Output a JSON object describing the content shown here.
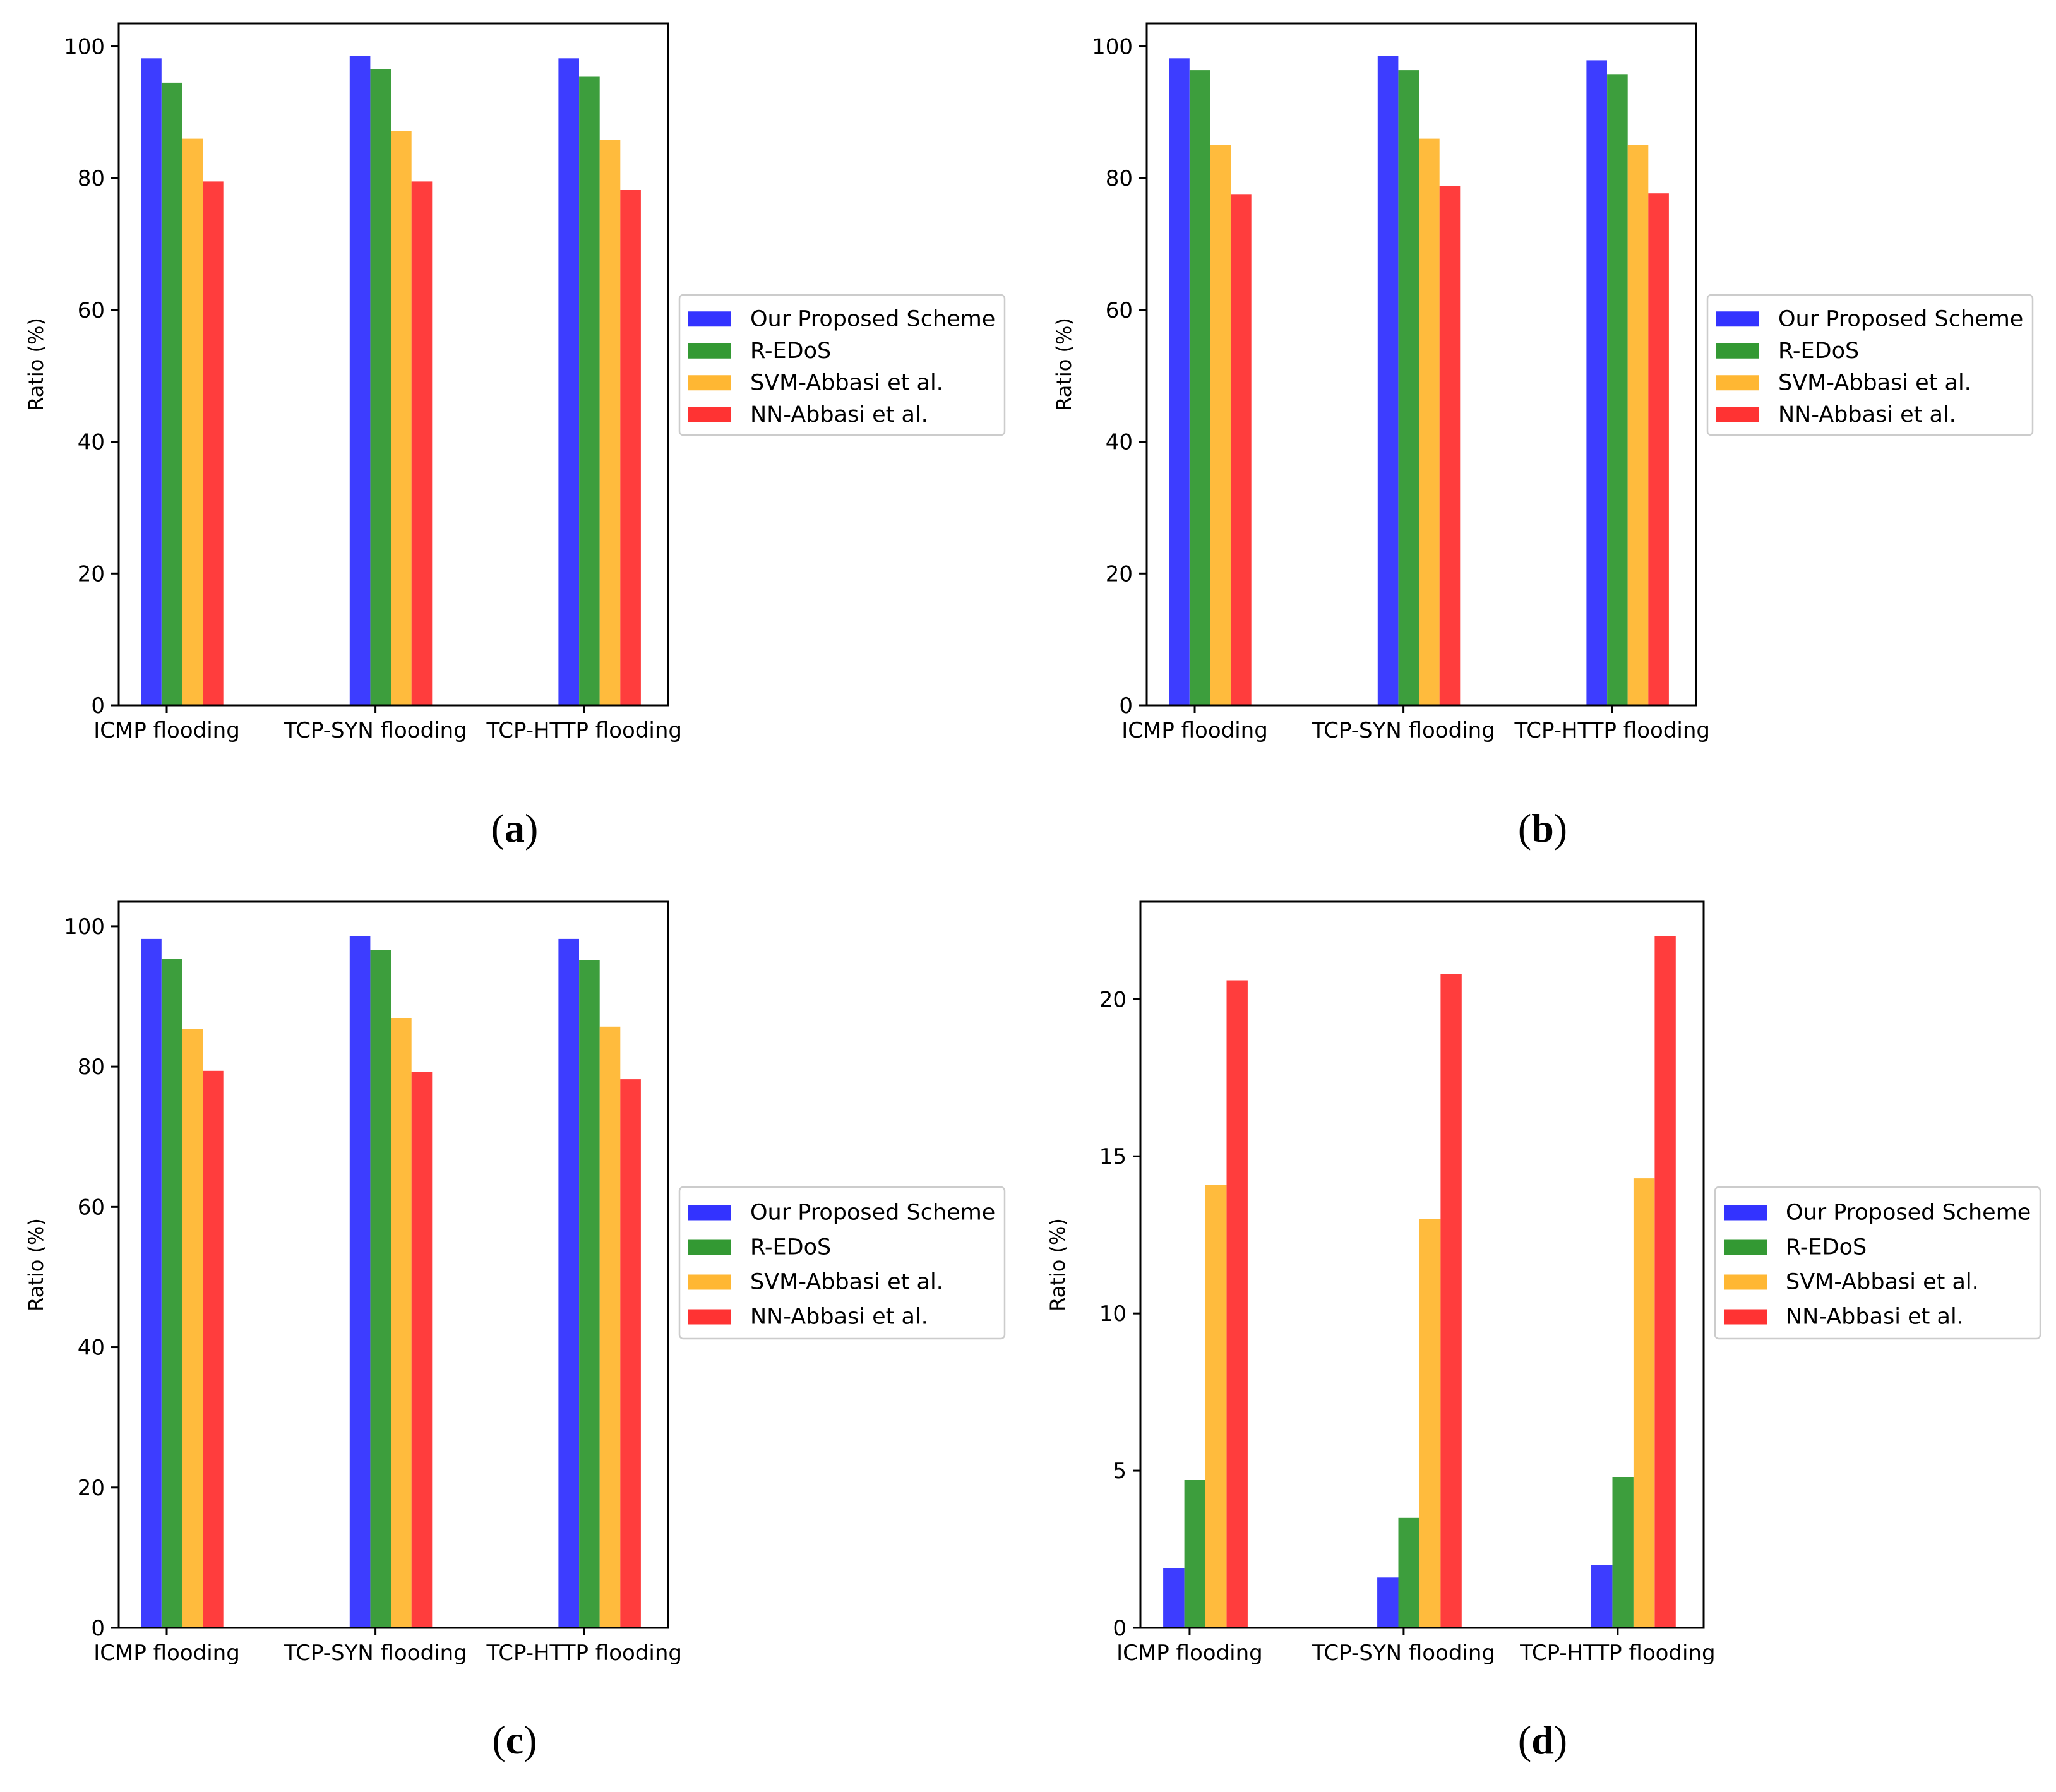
{
  "colors": {
    "blue": "#3333ff",
    "green": "#339933",
    "orange": "#ffb733",
    "red": "#ff3333"
  },
  "chart_data": [
    {
      "id": "a",
      "type": "bar",
      "caption": "a",
      "categories": [
        "ICMP flooding",
        "TCP-SYN flooding",
        "TCP-HTTP flooding"
      ],
      "ylabel": "Ratio (%)",
      "ylim": [
        0,
        103.5
      ],
      "yticks": [
        0,
        20,
        40,
        60,
        80,
        100
      ],
      "legend_position": "right-outside",
      "series": [
        {
          "name": "Our Proposed Scheme",
          "color": "#3333ff",
          "values": [
            98.2,
            98.6,
            98.2
          ]
        },
        {
          "name": "R-EDoS",
          "color": "#339933",
          "values": [
            94.5,
            96.6,
            95.4
          ]
        },
        {
          "name": "SVM-Abbasi et al.",
          "color": "#ffb733",
          "values": [
            86.0,
            87.2,
            85.8
          ]
        },
        {
          "name": "NN-Abbasi et al.",
          "color": "#ff3333",
          "values": [
            79.5,
            79.5,
            78.2
          ]
        }
      ]
    },
    {
      "id": "b",
      "type": "bar",
      "caption": "b",
      "categories": [
        "ICMP flooding",
        "TCP-SYN flooding",
        "TCP-HTTP flooding"
      ],
      "ylabel": "Ratio (%)",
      "ylim": [
        0,
        103.5
      ],
      "yticks": [
        0,
        20,
        40,
        60,
        80,
        100
      ],
      "legend_position": "right-outside",
      "series": [
        {
          "name": "Our Proposed Scheme",
          "color": "#3333ff",
          "values": [
            98.2,
            98.6,
            97.9
          ]
        },
        {
          "name": "R-EDoS",
          "color": "#339933",
          "values": [
            96.4,
            96.4,
            95.8
          ]
        },
        {
          "name": "SVM-Abbasi et al.",
          "color": "#ffb733",
          "values": [
            85.0,
            86.0,
            85.0
          ]
        },
        {
          "name": "NN-Abbasi et al.",
          "color": "#ff3333",
          "values": [
            77.5,
            78.8,
            77.7
          ]
        }
      ]
    },
    {
      "id": "c",
      "type": "bar",
      "caption": "c",
      "categories": [
        "ICMP flooding",
        "TCP-SYN flooding",
        "TCP-HTTP flooding"
      ],
      "ylabel": "Ratio (%)",
      "ylim": [
        0,
        103.5
      ],
      "yticks": [
        0,
        20,
        40,
        60,
        80,
        100
      ],
      "legend_position": "right-outside",
      "series": [
        {
          "name": "Our Proposed Scheme",
          "color": "#3333ff",
          "values": [
            98.2,
            98.6,
            98.2
          ]
        },
        {
          "name": "R-EDoS",
          "color": "#339933",
          "values": [
            95.4,
            96.6,
            95.2
          ]
        },
        {
          "name": "SVM-Abbasi et al.",
          "color": "#ffb733",
          "values": [
            85.4,
            86.9,
            85.7
          ]
        },
        {
          "name": "NN-Abbasi et al.",
          "color": "#ff3333",
          "values": [
            79.4,
            79.2,
            78.2
          ]
        }
      ]
    },
    {
      "id": "d",
      "type": "bar",
      "caption": "d",
      "categories": [
        "ICMP flooding",
        "TCP-SYN flooding",
        "TCP-HTTP flooding"
      ],
      "ylabel": "Ratio (%)",
      "ylim": [
        0,
        23.1
      ],
      "yticks": [
        0,
        5,
        10,
        15,
        20
      ],
      "legend_position": "right-outside",
      "series": [
        {
          "name": "Our Proposed Scheme",
          "color": "#3333ff",
          "values": [
            1.9,
            1.6,
            2.0
          ]
        },
        {
          "name": "R-EDoS",
          "color": "#339933",
          "values": [
            4.7,
            3.5,
            4.8
          ]
        },
        {
          "name": "SVM-Abbasi et al.",
          "color": "#ffb733",
          "values": [
            14.1,
            13.0,
            14.3
          ]
        },
        {
          "name": "NN-Abbasi et al.",
          "color": "#ff3333",
          "values": [
            20.6,
            20.8,
            22.0
          ]
        }
      ]
    }
  ]
}
